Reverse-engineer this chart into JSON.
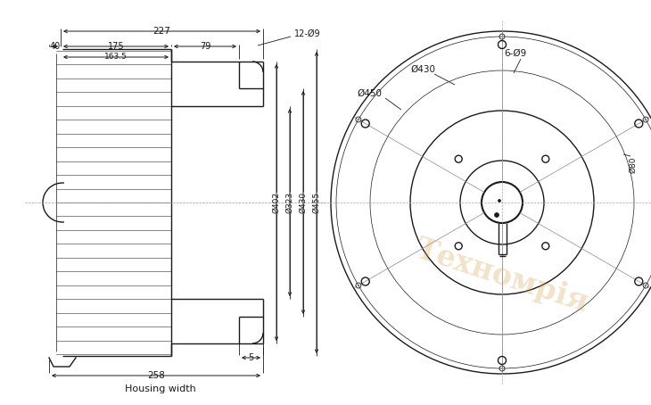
{
  "bg_color": "#ffffff",
  "line_color": "#1a1a1a",
  "watermark_color": "#d4a04a",
  "dim_227": "227",
  "dim_40": "40",
  "dim_175": "175",
  "dim_163_5": "163.5",
  "dim_79": "79",
  "dim_5": "5",
  "dim_258": "258",
  "dim_d402": "Ø402",
  "dim_d323": "Ø323",
  "dim_d430_left": "Ø430",
  "dim_d455": "Ø455",
  "dim_d450": "Ø450",
  "dim_d430_right": "Ø430",
  "dim_6d9": "6-Ø9",
  "dim_12d9": "12-Ø9",
  "dim_d80": "Ø80",
  "housing_width_label": "Housing width",
  "watermark_text": "Техномрія"
}
